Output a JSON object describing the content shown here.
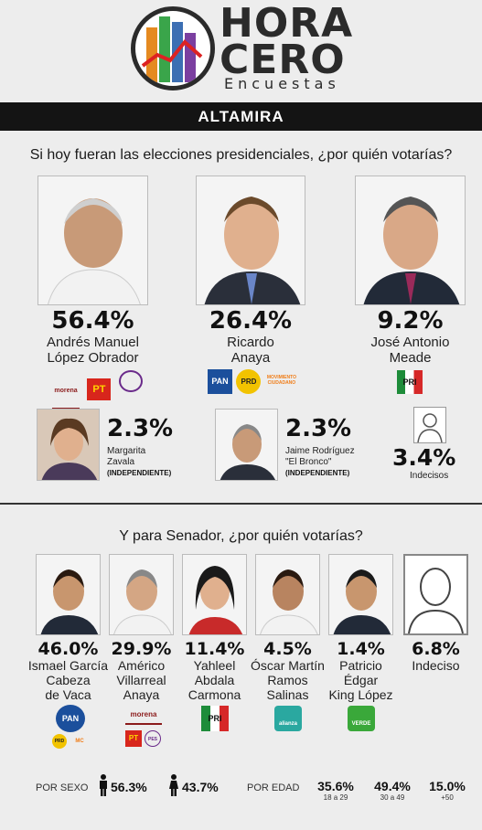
{
  "header": {
    "brand_line1": "HORA",
    "brand_line2": "CERO",
    "brand_line3": "Encuestas",
    "region": "ALTAMIRA"
  },
  "presidential": {
    "question": "Si hoy fueran las elecciones presidenciales, ¿por quién votarías?",
    "top": [
      {
        "pct": "56.4%",
        "name1": "Andrés Manuel",
        "name2": "López Obrador",
        "parties": [
          "morena",
          "PT",
          "encuentro social"
        ]
      },
      {
        "pct": "26.4%",
        "name1": "Ricardo",
        "name2": "Anaya",
        "parties": [
          "PAN",
          "PRD",
          "MOVIMIENTO CIUDADANO"
        ]
      },
      {
        "pct": "9.2%",
        "name1": "José Antonio",
        "name2": "Meade",
        "parties": [
          "PRI"
        ]
      }
    ],
    "bottom": [
      {
        "pct": "2.3%",
        "name1": "Margarita",
        "name2": "Zavala",
        "tag": "(INDEPENDIENTE)"
      },
      {
        "pct": "2.3%",
        "name1": "Jaime Rodríguez",
        "name2": "\"El Bronco\"",
        "tag": "(INDEPENDIENTE)"
      },
      {
        "pct": "3.4%",
        "label": "Indecisos"
      }
    ]
  },
  "senate": {
    "question": "Y para Senador, ¿por quién votarías?",
    "candidates": [
      {
        "pct": "46.0%",
        "lines": [
          "Ismael García",
          "Cabeza",
          "de Vaca"
        ],
        "parties": [
          "PAN",
          "PRD",
          "MC"
        ]
      },
      {
        "pct": "29.9%",
        "lines": [
          "Américo",
          "Villarreal",
          "Anaya"
        ],
        "parties": [
          "morena",
          "PT",
          "PES"
        ]
      },
      {
        "pct": "11.4%",
        "lines": [
          "Yahleel",
          "Abdala",
          "Carmona"
        ],
        "parties": [
          "PRI"
        ]
      },
      {
        "pct": "4.5%",
        "lines": [
          "Óscar Martín",
          "Ramos",
          "Salinas"
        ],
        "parties": [
          "alianza"
        ]
      },
      {
        "pct": "1.4%",
        "lines": [
          "Patricio",
          "Édgar",
          "King López"
        ],
        "parties": [
          "VERDE"
        ]
      },
      {
        "pct": "6.8%",
        "lines": [
          "Indeciso"
        ],
        "parties": []
      }
    ]
  },
  "stats": {
    "sex_label": "POR SEXO",
    "male_pct": "56.3%",
    "female_pct": "43.7%",
    "age_label": "POR EDAD",
    "ages": [
      {
        "pct": "35.6%",
        "range": "18 a 29"
      },
      {
        "pct": "49.4%",
        "range": "30 a 49"
      },
      {
        "pct": "15.0%",
        "range": "+50"
      }
    ]
  },
  "colors": {
    "morena": "#8b1b1b",
    "pt": "#d8261c",
    "pan": "#1b4f9c",
    "prd": "#f2c300",
    "mc": "#f07d18",
    "pri_green": "#1e8c3a",
    "pri_red": "#d62828",
    "verde": "#3aa83a",
    "alianza": "#2aa8a0"
  }
}
